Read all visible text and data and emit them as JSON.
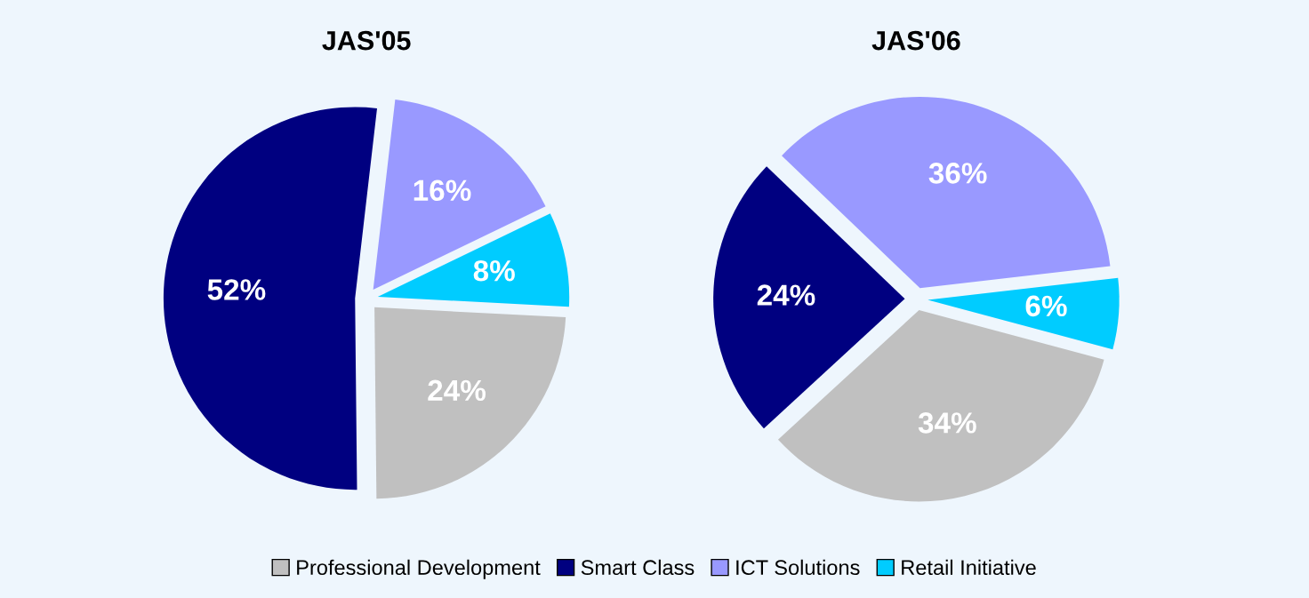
{
  "chart_data": [
    {
      "type": "pie",
      "title": "JAS'05",
      "categories": [
        "Professional Development",
        "Smart Class",
        "ICT Solutions",
        "Retail Initiative"
      ],
      "values": [
        24,
        52,
        16,
        8
      ],
      "colors": [
        "#c0c0c0",
        "#000080",
        "#9999ff",
        "#00ccff"
      ],
      "value_labels": [
        "24%",
        "52%",
        "16%",
        "8%"
      ],
      "legend": "bottom"
    },
    {
      "type": "pie",
      "title": "JAS'06",
      "values": [
        34,
        24,
        36,
        6
      ],
      "colors": [
        "#c0c0c0",
        "#000080",
        "#9999ff",
        "#00ccff"
      ],
      "value_labels": [
        "34%",
        "24%",
        "36%",
        "6%"
      ]
    }
  ]
}
